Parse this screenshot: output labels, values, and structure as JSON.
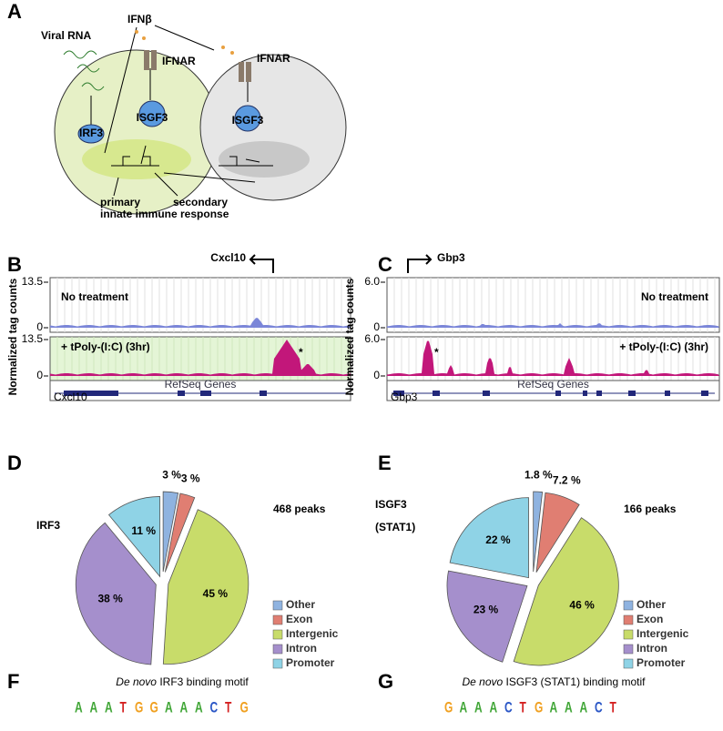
{
  "panels": {
    "A": {
      "letter": "A",
      "viral_rna": "Viral RNA",
      "ifnb": "IFNβ",
      "ifnar_1": "IFNAR",
      "ifnar_2": "IFNAR",
      "irf3": "IRF3",
      "isgf3_1": "ISGF3",
      "isgf3_2": "ISGF3",
      "primary": "primary",
      "secondary": "secondary",
      "response": "innate immune response"
    },
    "B": {
      "letter": "B",
      "gene": "Cxcl10",
      "y_label": "Normalized tag counts",
      "top_tick": "13.5",
      "zero_tick": "0",
      "top_tick_2": "13.5",
      "zero_tick_2": "0",
      "track_1": "No treatment",
      "track_2": "+ tPoly-(I:C) (3hr)",
      "star": "*",
      "refseq": "RefSeq Genes",
      "gene_small": "Cxcl10"
    },
    "C": {
      "letter": "C",
      "gene": "Gbp3",
      "y_label": "Normalized tag counts",
      "top_tick": "6.0",
      "zero_tick": "0",
      "top_tick_2": "6.0",
      "zero_tick_2": "0",
      "track_1": "No treatment",
      "track_2": "+ tPoly-(I:C) (3hr)",
      "star": "*",
      "refseq": "RefSeq Genes",
      "gene_small": "Gbp3"
    },
    "D": {
      "letter": "D"
    },
    "E": {
      "letter": "E"
    },
    "F": {
      "letter": "F",
      "title_italic": "De novo",
      "title": " IRF3 binding motif",
      "motif": [
        "A",
        "A",
        "A",
        "T",
        "G",
        "G",
        "A",
        "A",
        "A",
        "C",
        "T",
        "G"
      ]
    },
    "G": {
      "letter": "G",
      "title_italic": "De novo",
      "title": " ISGF3 (STAT1) binding motif",
      "motif": [
        "G",
        "A",
        "A",
        "A",
        "C",
        "T",
        "G",
        "A",
        "A",
        "A",
        "C",
        "T"
      ]
    }
  },
  "chart_data": [
    {
      "type": "pie",
      "title": [
        "IRF3"
      ],
      "subtitle": "468 peaks",
      "categories": [
        "Other",
        "Exon",
        "Intergenic",
        "Intron",
        "Promoter"
      ],
      "values": [
        3,
        3,
        45,
        38,
        11
      ],
      "value_labels": [
        "3 %",
        "3 %",
        "45 %",
        "38 %",
        "11 %"
      ],
      "colors": [
        "#8fb3e0",
        "#e07e72",
        "#c8dc6a",
        "#a58fcc",
        "#8fd3e6"
      ]
    },
    {
      "type": "pie",
      "title": [
        "ISGF3",
        "(STAT1)"
      ],
      "subtitle": "166 peaks",
      "categories": [
        "Other",
        "Exon",
        "Intergenic",
        "Intron",
        "Promoter"
      ],
      "values": [
        1.8,
        7.2,
        46,
        23,
        22
      ],
      "value_labels": [
        "1.8 %",
        "7.2 %",
        "46 %",
        "23 %",
        "22 %"
      ],
      "colors": [
        "#8fb3e0",
        "#e07e72",
        "#c8dc6a",
        "#a58fcc",
        "#8fd3e6"
      ]
    }
  ]
}
